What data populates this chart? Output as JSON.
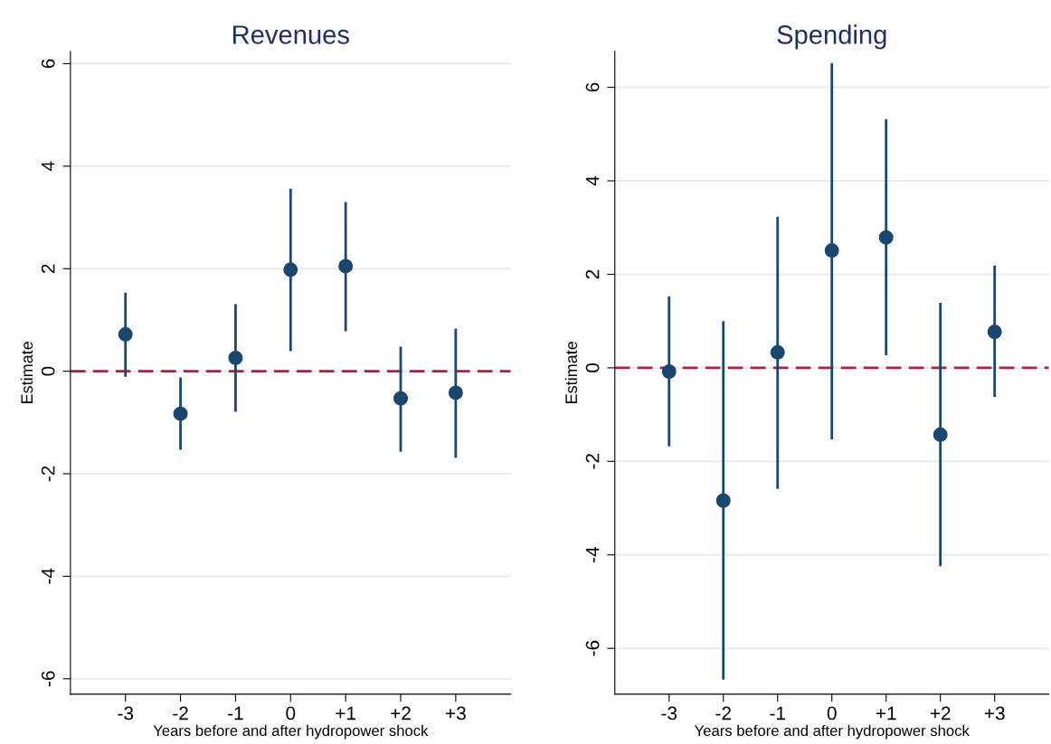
{
  "chart_data": [
    {
      "type": "scatter",
      "title": "Revenues",
      "xlabel": "Years before and after hydropower shock",
      "ylabel": "Estimate",
      "categories": [
        "-3",
        "-2",
        "-1",
        "0",
        "+1",
        "+2",
        "+3"
      ],
      "series": [
        {
          "color": "#1a476f",
          "values": [
            0.72,
            -0.83,
            0.26,
            1.98,
            2.05,
            -0.53,
            -0.42
          ],
          "errors": [
            [
              -0.11,
              1.53
            ],
            [
              -1.53,
              -0.12
            ],
            [
              -0.79,
              1.31
            ],
            [
              0.39,
              3.56
            ],
            [
              0.78,
              3.3
            ],
            [
              -1.57,
              0.48
            ],
            [
              -1.69,
              0.83
            ]
          ]
        }
      ],
      "ylim": [
        -6.3,
        6.24
      ],
      "yticks": [
        {
          "value": -6,
          "label": "-6"
        },
        {
          "value": -4,
          "label": "-4"
        },
        {
          "value": -2,
          "label": "-2"
        },
        0,
        2,
        4,
        6
      ],
      "ref_lines": [
        {
          "axis": "y",
          "value": 0,
          "color": "#d0103a",
          "line_style": "dashed"
        }
      ],
      "grid": "y",
      "marker": "circle"
    },
    {
      "type": "scatter",
      "title": "Spending",
      "xlabel": "Years before and after hydropower shock",
      "ylabel": "Estimate",
      "categories": [
        "-3",
        "-2",
        "-1",
        "0",
        "+1",
        "+2",
        "+3"
      ],
      "series": [
        {
          "color": "#1a476f",
          "values": [
            -0.08,
            -2.84,
            0.33,
            2.51,
            2.79,
            -1.43,
            0.77
          ],
          "errors": [
            [
              -1.68,
              1.53
            ],
            [
              -6.67,
              1.0
            ],
            [
              -2.59,
              3.23
            ],
            [
              -1.53,
              6.52
            ],
            [
              0.27,
              5.32
            ],
            [
              -4.24,
              1.39
            ],
            [
              -0.62,
              2.19
            ]
          ]
        }
      ],
      "ylim": [
        -6.98,
        6.77
      ],
      "yticks": [
        {
          "value": -6,
          "label": "-6"
        },
        {
          "value": -4,
          "label": "-4"
        },
        {
          "value": -2,
          "label": "-2"
        },
        0,
        2,
        4,
        6
      ],
      "ref_lines": [
        {
          "axis": "y",
          "value": 0,
          "color": "#d0103a",
          "line_style": "dashed"
        }
      ],
      "grid": "y",
      "marker": "circle"
    }
  ]
}
